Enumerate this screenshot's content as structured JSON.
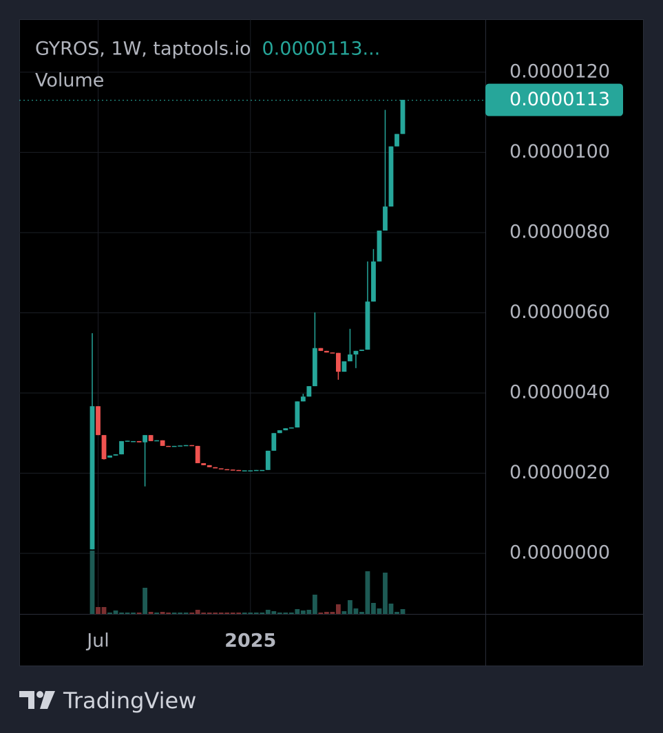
{
  "chart_data": {
    "type": "candlestick",
    "title": "GYROS, 1W, taptools.io",
    "legend_value": "0.0000113...",
    "volume_label": "Volume",
    "up_color": "#26a69a",
    "down_color": "#ef5350",
    "volume_up_color": "#1d5a54",
    "volume_down_color": "#7b2f30",
    "grid": true,
    "ylim": [
      -1.51e-06,
      1.332e-05
    ],
    "yticks": [
      {
        "value": 0,
        "label": "0.0000000"
      },
      {
        "value": 2e-06,
        "label": "0.0000020"
      },
      {
        "value": 4e-06,
        "label": "0.0000040"
      },
      {
        "value": 6e-06,
        "label": "0.0000060"
      },
      {
        "value": 8e-06,
        "label": "0.0000080"
      },
      {
        "value": 1e-05,
        "label": "0.0000100"
      },
      {
        "value": 1.2e-05,
        "label": "0.0000120"
      }
    ],
    "last_price": {
      "value": 1.13e-05,
      "label": "0.0000113"
    },
    "categories": [
      null,
      "Jul",
      null,
      null,
      null,
      null,
      null,
      null,
      null,
      null,
      null,
      null,
      null,
      null,
      null,
      null,
      null,
      null,
      null,
      null,
      null,
      null,
      null,
      null,
      null,
      null,
      null,
      "2025",
      null,
      null,
      null,
      null,
      null,
      null,
      null,
      null,
      null,
      null,
      null,
      null,
      null,
      null,
      null,
      null,
      null,
      null,
      null,
      null,
      null,
      null,
      null,
      null,
      null,
      null
    ],
    "series": [
      {
        "name": "GYROS",
        "open": [
          1e-07,
          3.67e-06,
          2.95e-06,
          2.39e-06,
          2.44e-06,
          2.47e-06,
          2.8e-06,
          2.8e-06,
          2.8e-06,
          2.77e-06,
          2.95e-06,
          2.8e-06,
          2.82e-06,
          2.68e-06,
          2.67e-06,
          2.68e-06,
          2.69e-06,
          2.7e-06,
          2.68e-06,
          2.25e-06,
          2.2e-06,
          2.15e-06,
          2.12e-06,
          2.1e-06,
          2.09e-06,
          2.08e-06,
          2.07e-06,
          2.07e-06,
          2.07e-06,
          2.08e-06,
          2.08e-06,
          2.56e-06,
          3e-06,
          3.07e-06,
          3.12e-06,
          3.14e-06,
          3.79e-06,
          3.91e-06,
          4.17e-06,
          5.12e-06,
          5.05e-06,
          5.01e-06,
          5e-06,
          4.53e-06,
          4.79e-06,
          4.96e-06,
          5.05e-06,
          5.08e-06,
          6.28e-06,
          7.28e-06,
          8.05e-06,
          8.65e-06,
          1.015e-05,
          1.046e-05
        ],
        "high": [
          5.49e-06,
          3.67e-06,
          2.95e-06,
          2.44e-06,
          2.47e-06,
          2.8e-06,
          2.81e-06,
          2.8e-06,
          2.8e-06,
          2.95e-06,
          2.95e-06,
          2.82e-06,
          2.82e-06,
          2.68e-06,
          2.68e-06,
          2.69e-06,
          2.7e-06,
          2.7e-06,
          2.68e-06,
          2.25e-06,
          2.2e-06,
          2.15e-06,
          2.12e-06,
          2.1e-06,
          2.09e-06,
          2.08e-06,
          2.07e-06,
          2.07e-06,
          2.08e-06,
          2.08e-06,
          2.56e-06,
          3e-06,
          3.07e-06,
          3.12e-06,
          3.14e-06,
          3.79e-06,
          3.98e-06,
          4.17e-06,
          6.01e-06,
          5.12e-06,
          5.05e-06,
          5.01e-06,
          5e-06,
          4.79e-06,
          5.6e-06,
          5.05e-06,
          5.08e-06,
          7.28e-06,
          7.59e-06,
          8.05e-06,
          1.106e-05,
          1.015e-05,
          1.046e-05,
          1.131e-05
        ],
        "low": [
          1e-07,
          2.95e-06,
          2.34e-06,
          2.39e-06,
          2.44e-06,
          2.47e-06,
          2.8e-06,
          2.8e-06,
          2.77e-06,
          1.67e-06,
          2.8e-06,
          2.8e-06,
          2.68e-06,
          2.67e-06,
          2.67e-06,
          2.68e-06,
          2.69e-06,
          2.68e-06,
          2.25e-06,
          2.2e-06,
          2.15e-06,
          2.12e-06,
          2.1e-06,
          2.09e-06,
          2.08e-06,
          2.07e-06,
          2.07e-06,
          2.07e-06,
          2.07e-06,
          2.08e-06,
          2.08e-06,
          2.56e-06,
          3e-06,
          3.07e-06,
          3.12e-06,
          3.14e-06,
          3.79e-06,
          3.91e-06,
          4.17e-06,
          5.05e-06,
          5.01e-06,
          5e-06,
          4.33e-06,
          4.53e-06,
          4.79e-06,
          4.62e-06,
          5.05e-06,
          5.08e-06,
          6.28e-06,
          7.28e-06,
          8.05e-06,
          8.65e-06,
          1.015e-05,
          1.046e-05
        ],
        "close": [
          3.67e-06,
          2.95e-06,
          2.35e-06,
          2.44e-06,
          2.47e-06,
          2.8e-06,
          2.81e-06,
          2.8e-06,
          2.77e-06,
          2.95e-06,
          2.8e-06,
          2.82e-06,
          2.68e-06,
          2.67e-06,
          2.68e-06,
          2.69e-06,
          2.7e-06,
          2.68e-06,
          2.25e-06,
          2.2e-06,
          2.15e-06,
          2.12e-06,
          2.1e-06,
          2.09e-06,
          2.08e-06,
          2.07e-06,
          2.07e-06,
          2.07e-06,
          2.08e-06,
          2.08e-06,
          2.56e-06,
          3e-06,
          3.07e-06,
          3.12e-06,
          3.14e-06,
          3.79e-06,
          3.91e-06,
          4.17e-06,
          5.12e-06,
          5.05e-06,
          5.01e-06,
          5e-06,
          4.53e-06,
          4.79e-06,
          4.96e-06,
          5.05e-06,
          5.08e-06,
          6.28e-06,
          7.28e-06,
          8.05e-06,
          8.65e-06,
          1.015e-05,
          1.046e-05,
          1.131e-05
        ],
        "volume": [
          92,
          10,
          10,
          2,
          5,
          2,
          2,
          2,
          2,
          38,
          3,
          2,
          3,
          2,
          2,
          2,
          2,
          2,
          6,
          2,
          2,
          2,
          2,
          2,
          2,
          2,
          2,
          2,
          2,
          2,
          6,
          4,
          2,
          2,
          2,
          7,
          5,
          6,
          28,
          2,
          3,
          3,
          14,
          4,
          20,
          8,
          3,
          62,
          16,
          8,
          60,
          15,
          3,
          7
        ]
      }
    ]
  },
  "brand": "TradingView"
}
